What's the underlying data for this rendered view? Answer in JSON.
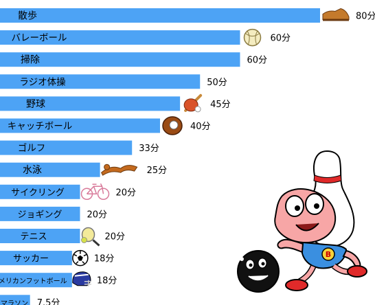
{
  "chart_data": {
    "type": "bar",
    "orientation": "horizontal",
    "value_unit": "分",
    "categories": [
      "散歩",
      "バレーボール",
      "掃除",
      "ラジオ体操",
      "野球",
      "キャッチボール",
      "ゴルフ",
      "水泳",
      "サイクリング",
      "ジョギング",
      "テニス",
      "サッカー",
      "アメリカンフットボール",
      "マラソン"
    ],
    "values": [
      80,
      60,
      60,
      50,
      45,
      40,
      33,
      25,
      20,
      20,
      20,
      18,
      18,
      7.5
    ],
    "value_labels": [
      "80分",
      "60分",
      "60分",
      "50分",
      "45分",
      "40分",
      "33分",
      "25分",
      "20分",
      "20分",
      "20分",
      "18分",
      "18分",
      "7.5分"
    ],
    "icons": [
      "shoe-icon",
      "volleyball-icon",
      "",
      "",
      "baseball-bat-glove-icon",
      "baseball-glove-icon",
      "",
      "swimmer-icon",
      "bicycle-icon",
      "",
      "tennis-racket-icon",
      "soccer-ball-icon",
      "football-helmet-icon",
      ""
    ],
    "bar_color": "#4da3f5",
    "title": "",
    "xlabel": "",
    "ylabel": ""
  },
  "mascot": {
    "name": "bowling-pin-mascot-icon",
    "badge_text": "B"
  }
}
